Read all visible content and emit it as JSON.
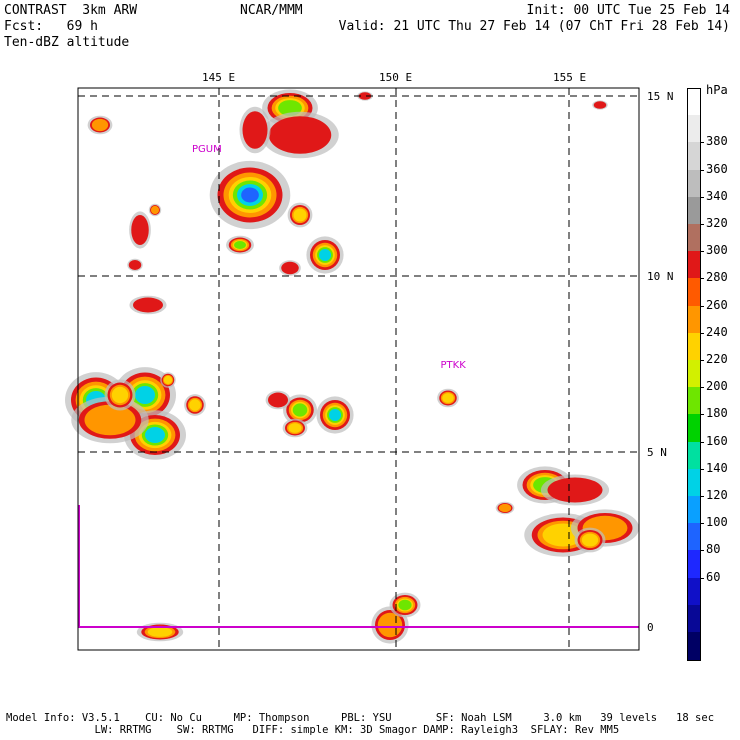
{
  "header": {
    "model_name": "CONTRAST  3km ARW",
    "forecast": "Fcst:   69 h",
    "field": "Ten-dBZ altitude",
    "center": "NCAR/MMM",
    "init": "Init: 00 UTC Tue 25 Feb 14",
    "valid": "Valid: 21 UTC Thu 27 Feb 14 (07 ChT Fri 28 Feb 14)"
  },
  "lon_labels": [
    "145 E",
    "150 E",
    "155 E"
  ],
  "lat_labels": [
    "15 N",
    "10 N",
    "5 N",
    "0"
  ],
  "stations": [
    {
      "id": "PGUM",
      "label": "PGUM",
      "lon": 144.8,
      "lat": 13.5
    },
    {
      "id": "PTKK",
      "label": "PTKK",
      "lon": 151.9,
      "lat": 7.4
    }
  ],
  "colorbar": {
    "unit": "hPa",
    "labels": [
      "380",
      "360",
      "340",
      "320",
      "300",
      "280",
      "260",
      "240",
      "220",
      "200",
      "180",
      "160",
      "140",
      "120",
      "100",
      "80",
      "60"
    ],
    "colors": [
      "#ffffff",
      "#ececec",
      "#d6d6d6",
      "#bdbdbd",
      "#9a9a9a",
      "#b07060",
      "#e01818",
      "#ff5a00",
      "#ff9600",
      "#ffd200",
      "#d2f000",
      "#6ee600",
      "#00d200",
      "#00e0a0",
      "#00d2e6",
      "#0aa0ff",
      "#1e64ff",
      "#1e28ff",
      "#1010c8",
      "#080896",
      "#000064"
    ]
  },
  "colors": {
    "station": "#cc00cc",
    "equator": "#cc00cc",
    "grid": "#000000"
  },
  "footer": {
    "line1": "Model Info: V3.5.1    CU: No Cu     MP: Thompson     PBL: YSU       SF: Noah LSM     3.0 km   39 levels   18 sec",
    "line2": "              LW: RRTMG    SW: RRTMG   DIFF: simple KM: 3D Smagor DAMP: Rayleigh3  SFLAY: Rev MM5"
  }
}
